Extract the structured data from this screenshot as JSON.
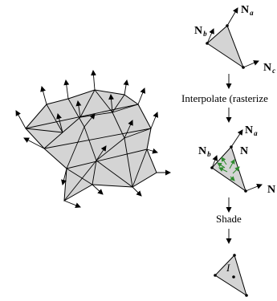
{
  "pipeline": {
    "normals": {
      "n_a": {
        "main": "N",
        "sub": "a"
      },
      "n_b": {
        "main": "N",
        "sub": "b"
      },
      "n_c": {
        "main": "N",
        "sub": "c"
      },
      "n_interp": {
        "main": "N",
        "sub": ""
      }
    },
    "step1_label": "Interpolate (rasterize",
    "step2_label": "Shade",
    "intensity_label": "I"
  },
  "colors": {
    "fill": "#d4d4d4",
    "stroke": "#000000",
    "interpolated_normals": "#2e8b2e"
  }
}
